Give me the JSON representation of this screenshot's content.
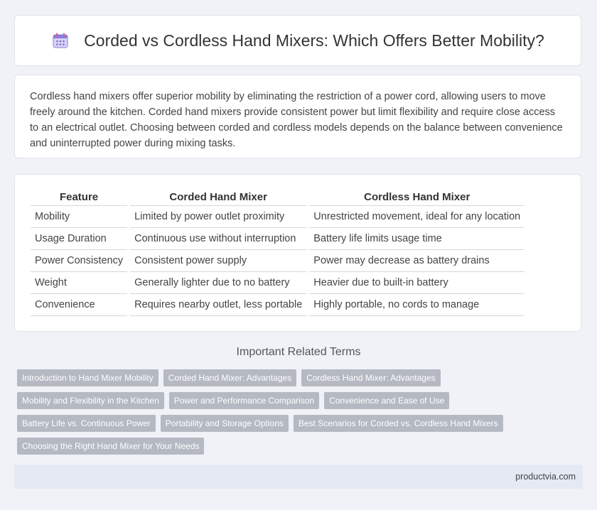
{
  "header": {
    "title": "Corded vs Cordless Hand Mixers: Which Offers Better Mobility?",
    "icon": "calendar-icon"
  },
  "intro": {
    "text": "Cordless hand mixers offer superior mobility by eliminating the restriction of a power cord, allowing users to move freely around the kitchen. Corded hand mixers provide consistent power but limit flexibility and require close access to an electrical outlet. Choosing between corded and cordless models depends on the balance between convenience and uninterrupted power during mixing tasks."
  },
  "table": {
    "headers": [
      "Feature",
      "Corded Hand Mixer",
      "Cordless Hand Mixer"
    ],
    "rows": [
      [
        "Mobility",
        "Limited by power outlet proximity",
        "Unrestricted movement, ideal for any location"
      ],
      [
        "Usage Duration",
        "Continuous use without interruption",
        "Battery life limits usage time"
      ],
      [
        "Power Consistency",
        "Consistent power supply",
        "Power may decrease as battery drains"
      ],
      [
        "Weight",
        "Generally lighter due to no battery",
        "Heavier due to built-in battery"
      ],
      [
        "Convenience",
        "Requires nearby outlet, less portable",
        "Highly portable, no cords to manage"
      ]
    ]
  },
  "related": {
    "title": "Important Related Terms",
    "tags": [
      [
        "Introduction to Hand Mixer Mobility",
        "Corded Hand Mixer: Advantages",
        "Cordless Hand Mixer: Advantages"
      ],
      [
        "Mobility and Flexibility in the Kitchen",
        "Power and Performance Comparison",
        "Convenience and Ease of Use"
      ],
      [
        "Battery Life vs. Continuous Power",
        "Portability and Storage Options",
        "Best Scenarios for Corded vs. Cordless Hand Mixers"
      ],
      [
        "Choosing the Right Hand Mixer for Your Needs"
      ]
    ]
  },
  "footer": {
    "site": "productvia.com"
  },
  "colors": {
    "background": "#f0f2f8",
    "tag": "#b5b9c2",
    "footer": "#e4e9f4"
  }
}
